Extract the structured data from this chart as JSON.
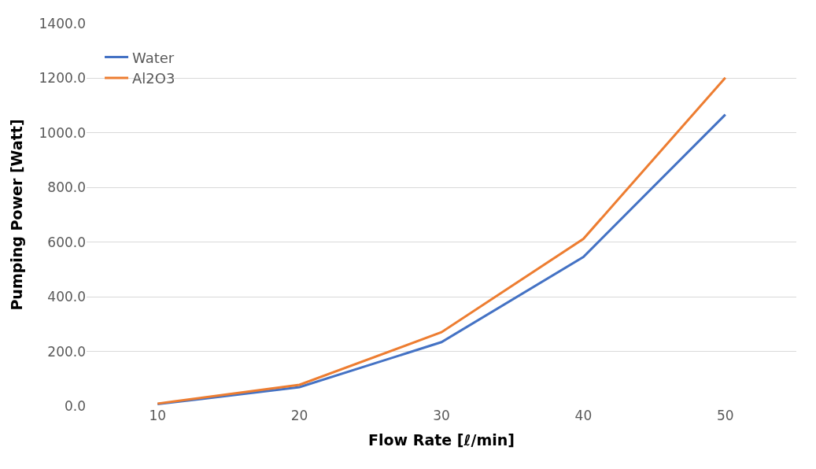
{
  "chart_data": {
    "type": "line",
    "xlabel": "Flow Rate [ℓ/min]",
    "ylabel": "Pumping Power [Watt]",
    "categories": [
      "10",
      "20",
      "30",
      "40",
      "50"
    ],
    "series": [
      {
        "name": "Water",
        "color": "#4472c4",
        "values": [
          7,
          69,
          234,
          546,
          1067
        ]
      },
      {
        "name": "Al2O3",
        "color": "#ed7d31",
        "values": [
          9,
          78,
          270,
          612,
          1202
        ]
      }
    ],
    "ylim": [
      0,
      1400
    ],
    "yticks": [
      {
        "value": 0,
        "label": "0.0"
      },
      {
        "value": 200,
        "label": "200.0"
      },
      {
        "value": 400,
        "label": "400.0"
      },
      {
        "value": 600,
        "label": "600.0"
      },
      {
        "value": 800,
        "label": "800.0"
      },
      {
        "value": 1000,
        "label": "1000.0"
      },
      {
        "value": 1200,
        "label": "1200.0"
      },
      {
        "value": 1400,
        "label": "1400.0"
      }
    ],
    "grid": "y",
    "legend": "top left",
    "marker": "none",
    "line_style": "solid"
  }
}
